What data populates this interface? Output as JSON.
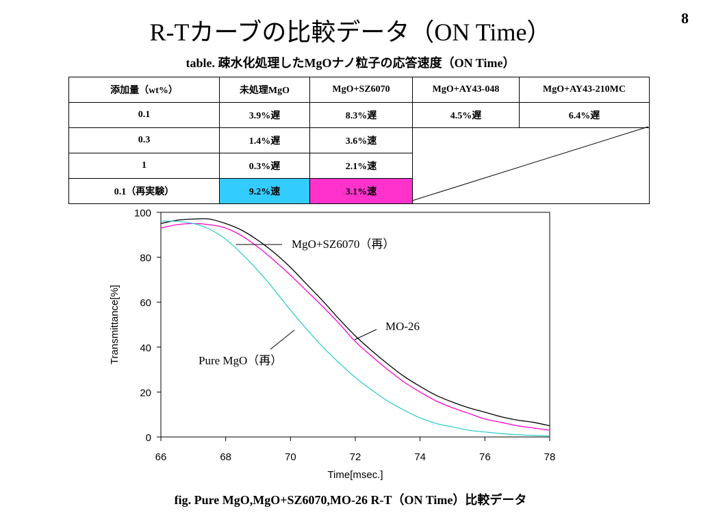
{
  "page_number": "8",
  "title": "R-Tカーブの比較データ（ON Time）",
  "table_title": "table. 疎水化処理したMgOナノ粒子の応答速度（ON Time）",
  "table": {
    "headers": [
      "添加量（wt%）",
      "未処理MgO",
      "MgO+SZ6070",
      "MgO+AY43-048",
      "MgO+AY43-210MC"
    ],
    "rows": [
      [
        "0.1",
        "3.9%遅",
        "8.3%遅",
        "4.5%遅",
        "6.4%遅"
      ],
      [
        "0.3",
        "1.4%遅",
        "3.6%速",
        "",
        ""
      ],
      [
        "1",
        "0.3%遅",
        "2.1%速",
        "",
        ""
      ],
      [
        "0.1（再実験）",
        "9.2%速",
        "3.1%速",
        "",
        ""
      ]
    ],
    "highlight_colors": {
      "cyan": "#33ccff",
      "magenta": "#ff33cc"
    }
  },
  "chart_data": {
    "type": "line",
    "xlabel": "Time[msec.]",
    "ylabel": "Transmittance[%]",
    "xlim": [
      66,
      78
    ],
    "ylim": [
      0,
      100
    ],
    "xticks": [
      66,
      68,
      70,
      72,
      74,
      76,
      78
    ],
    "yticks": [
      0,
      20,
      40,
      60,
      80,
      100
    ],
    "grid": false,
    "series": [
      {
        "name": "MgO+SZ6070（再）",
        "color": "#000000",
        "x": [
          66,
          66.5,
          67,
          67.5,
          68,
          68.5,
          69,
          69.5,
          70,
          70.5,
          71,
          71.5,
          72,
          72.5,
          73,
          73.5,
          74,
          74.5,
          75,
          75.5,
          76,
          76.5,
          77,
          77.5,
          78
        ],
        "y": [
          95,
          96.5,
          97,
          97,
          95,
          92,
          87.5,
          82,
          75.5,
          68,
          60.5,
          52.5,
          45,
          38.5,
          32.5,
          27,
          22.5,
          18.5,
          15.5,
          13,
          11,
          9,
          7.5,
          6.5,
          5
        ]
      },
      {
        "name": "MO-26",
        "color": "#ff00cc",
        "x": [
          66,
          66.5,
          67,
          67.5,
          68,
          68.5,
          69,
          69.5,
          70,
          70.5,
          71,
          71.5,
          72,
          72.5,
          73,
          73.5,
          74,
          74.5,
          75,
          75.5,
          76,
          76.5,
          77,
          77.5,
          78
        ],
        "y": [
          93,
          94.5,
          95,
          94.5,
          93,
          89.5,
          84.5,
          78.5,
          72,
          65,
          58,
          50.5,
          42.5,
          36,
          30,
          24.5,
          20,
          16,
          13,
          10.5,
          8,
          6.5,
          5,
          4,
          3
        ]
      },
      {
        "name": "Pure MgO（再）",
        "color": "#33cccc",
        "x": [
          66,
          66.5,
          67,
          67.5,
          68,
          68.5,
          69,
          69.5,
          70,
          70.5,
          71,
          71.5,
          72,
          72.5,
          73,
          73.5,
          74,
          74.5,
          75,
          75.5,
          76,
          76.5,
          77,
          77.5,
          78
        ],
        "y": [
          96,
          96,
          95,
          92.5,
          88,
          81.5,
          74,
          65.5,
          56.5,
          48,
          40,
          33,
          26.5,
          21,
          16,
          12,
          8.5,
          6,
          4.5,
          3,
          2.2,
          1.5,
          1,
          0.7,
          0.5
        ]
      }
    ],
    "annotations": [
      {
        "text": "MgO+SZ6070（再）",
        "series": 0
      },
      {
        "text": "MO-26",
        "series": 1
      },
      {
        "text": "Pure MgO（再）",
        "series": 2
      }
    ]
  },
  "caption": "fig. Pure MgO,MgO+SZ6070,MO-26 R-T（ON Time）比較データ"
}
